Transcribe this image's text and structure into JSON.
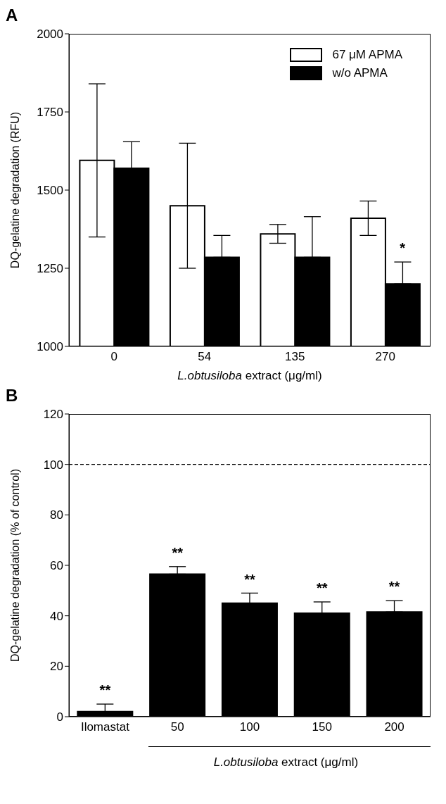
{
  "chart_data": [
    {
      "type": "bar",
      "title": "A",
      "categories": [
        "0",
        "54",
        "135",
        "270"
      ],
      "xlabel": "L.obtusiloba extract (μg/ml)",
      "ylabel": "DQ-gelatine degradation (RFU)",
      "ylim": [
        1000,
        2000
      ],
      "yticks": [
        1000,
        1250,
        1500,
        1750,
        2000
      ],
      "legend": "top right",
      "series": [
        {
          "name": "67 μM APMA",
          "color": "#ffffff",
          "values": [
            1595,
            1450,
            1360,
            1410
          ],
          "errors": [
            245,
            200,
            30,
            55
          ]
        },
        {
          "name": "w/o APMA",
          "color": "#000000",
          "values": [
            1570,
            1285,
            1285,
            1200
          ],
          "errors": [
            [
              1570,
              1655
            ],
            [
              1285,
              1355
            ],
            [
              1285,
              1415
            ],
            [
              1200,
              1270
            ]
          ]
        }
      ],
      "annotations": [
        {
          "text": "*",
          "x": "270",
          "y": 1200
        }
      ]
    },
    {
      "type": "bar",
      "title": "B",
      "categories": [
        "Ilomastat",
        "50",
        "100",
        "150",
        "200"
      ],
      "xlabel": "L.obtusiloba extract (μg/ml)",
      "ylabel": "DQ-gelatine degradation (% of control)",
      "ylim": [
        0,
        120
      ],
      "yticks": [
        0,
        20,
        40,
        60,
        80,
        100,
        120
      ],
      "series": [
        {
          "color": "#000000",
          "values": [
            2,
            56.5,
            45,
            41,
            41.5
          ],
          "errors": [
            [
              2,
              5
            ],
            [
              56.5,
              59.5
            ],
            [
              45,
              49
            ],
            [
              41,
              45.5
            ],
            [
              41.5,
              46
            ]
          ]
        }
      ],
      "ref_lines": [
        {
          "axis": "y",
          "value": 100,
          "line_style": "dashed"
        }
      ],
      "annotations": [
        {
          "text": "**",
          "x": "Ilomastat",
          "y": 2
        },
        {
          "text": "**",
          "x": "50",
          "y": 56.5
        },
        {
          "text": "**",
          "x": "100",
          "y": 45
        },
        {
          "text": "**",
          "x": "150",
          "y": 41
        },
        {
          "text": "**",
          "x": "200",
          "y": 41.5
        }
      ]
    }
  ]
}
